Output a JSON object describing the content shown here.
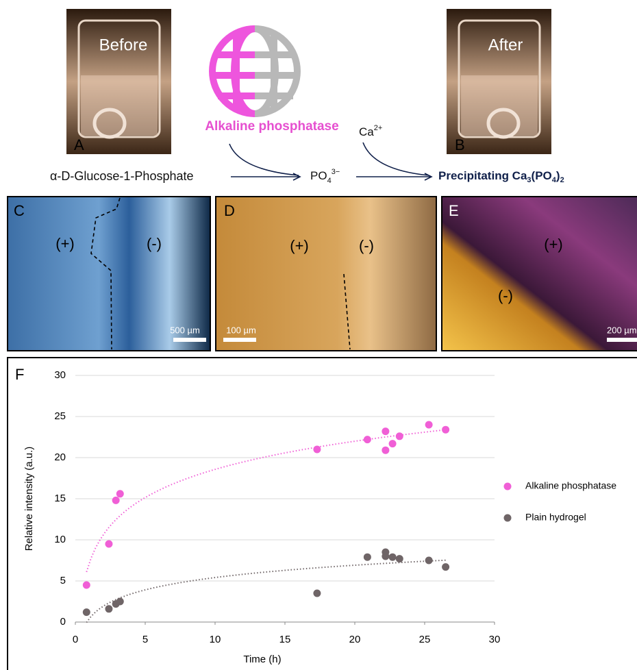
{
  "panels": {
    "A": {
      "label": "A",
      "caption": "Before"
    },
    "B": {
      "label": "B",
      "caption": "After"
    },
    "enzyme": "Alkaline phosphatase",
    "calcium": {
      "base": "Ca",
      "sup": "2+"
    },
    "substrate": "α-D-Glucose-1-Phosphate",
    "phosphate": {
      "base": "PO",
      "sub": "4",
      "sup": "3−"
    },
    "product": {
      "p1": "Precipitating Ca",
      "s1": "3",
      "p2": "(PO",
      "s2": "4",
      "p3": ")",
      "s3": "2"
    },
    "C": {
      "label": "C",
      "plus": "(+)",
      "minus": "(-)",
      "scale": "500 µm"
    },
    "D": {
      "label": "D",
      "plus": "(+)",
      "minus": "(-)",
      "scale": "100 µm"
    },
    "E": {
      "label": "E",
      "plus": "(+)",
      "minus": "(-)",
      "scale": "200 µm"
    },
    "F": {
      "label": "F"
    }
  },
  "chart_data": {
    "type": "scatter",
    "x_label": "Time (h)",
    "y_label": "Relative intensity (a.u.)",
    "xlim": [
      0,
      30
    ],
    "xticks": [
      0,
      5,
      10,
      15,
      20,
      25,
      30
    ],
    "ylim": [
      0,
      30
    ],
    "yticks": [
      0,
      5,
      10,
      15,
      20,
      25,
      30
    ],
    "grid": true,
    "trendline": "log",
    "series": [
      {
        "name": "Alkaline phosphatase",
        "color": "#f05fd6",
        "x": [
          0.8,
          2.4,
          2.9,
          3.2,
          17.3,
          20.9,
          22.2,
          22.2,
          22.7,
          23.2,
          25.3,
          26.5
        ],
        "values": [
          4.5,
          9.5,
          14.8,
          15.6,
          21,
          22.2,
          23.2,
          20.9,
          21.7,
          22.6,
          24,
          23.4
        ]
      },
      {
        "name": "Plain hydrogel",
        "color": "#6f6567",
        "x": [
          0.8,
          2.4,
          2.9,
          3.2,
          17.3,
          20.9,
          22.2,
          22.2,
          22.7,
          23.2,
          25.3,
          26.5
        ],
        "values": [
          1.2,
          1.6,
          2.2,
          2.5,
          3.5,
          7.9,
          8.5,
          8,
          7.9,
          7.7,
          7.5,
          6.7
        ]
      }
    ]
  }
}
